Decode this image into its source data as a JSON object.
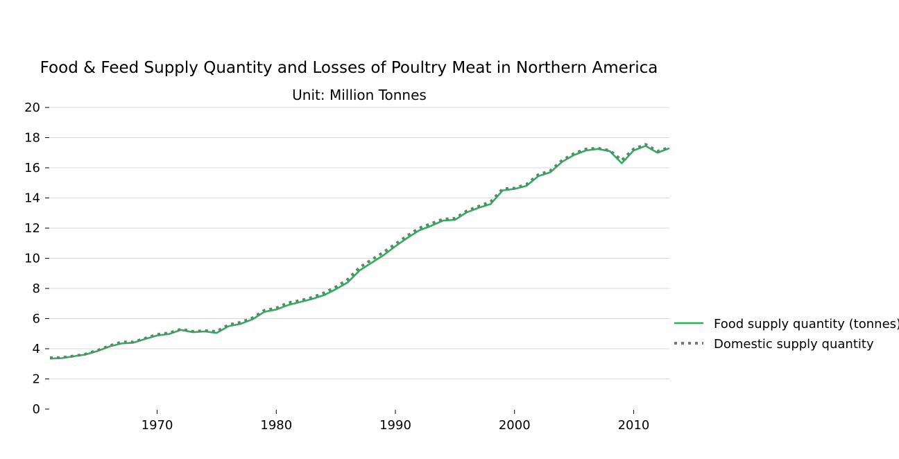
{
  "chart_data": {
    "type": "line",
    "title": "Food & Feed Supply Quantity and Losses of Poultry Meat in Northern America",
    "subtitle": "Unit: Million Tonnes",
    "xlabel": "",
    "ylabel": "",
    "xlim": [
      1961,
      2013
    ],
    "ylim": [
      0,
      20
    ],
    "yticks": [
      "0",
      "2",
      "4",
      "6",
      "8",
      "10",
      "12",
      "14",
      "16",
      "18",
      "20"
    ],
    "xticks": [
      "1970",
      "1980",
      "1990",
      "2000",
      "2010"
    ],
    "grid": "horizontal",
    "legend_position": "right",
    "x": [
      1961,
      1962,
      1963,
      1964,
      1965,
      1966,
      1967,
      1968,
      1969,
      1970,
      1971,
      1972,
      1973,
      1974,
      1975,
      1976,
      1977,
      1978,
      1979,
      1980,
      1981,
      1982,
      1983,
      1984,
      1985,
      1986,
      1987,
      1988,
      1989,
      1990,
      1991,
      1992,
      1993,
      1994,
      1995,
      1996,
      1997,
      1998,
      1999,
      2000,
      2001,
      2002,
      2003,
      2004,
      2005,
      2006,
      2007,
      2008,
      2009,
      2010,
      2011,
      2012,
      2013
    ],
    "series": [
      {
        "name": "Food supply quantity (tonnes)",
        "color": "#1db954",
        "style": "solid",
        "values": [
          3.35,
          3.38,
          3.5,
          3.62,
          3.85,
          4.15,
          4.35,
          4.4,
          4.65,
          4.88,
          4.98,
          5.25,
          5.1,
          5.15,
          5.05,
          5.5,
          5.65,
          5.95,
          6.45,
          6.6,
          6.9,
          7.1,
          7.3,
          7.55,
          7.95,
          8.4,
          9.2,
          9.7,
          10.2,
          10.8,
          11.35,
          11.85,
          12.15,
          12.5,
          12.55,
          13.05,
          13.35,
          13.6,
          14.5,
          14.6,
          14.8,
          15.45,
          15.7,
          16.4,
          16.85,
          17.15,
          17.25,
          17.1,
          16.3,
          17.15,
          17.45,
          17.0,
          17.3
        ]
      },
      {
        "name": "Domestic supply quantity",
        "color": "#777777",
        "style": "dotted",
        "values": [
          3.4,
          3.42,
          3.52,
          3.65,
          3.9,
          4.2,
          4.45,
          4.45,
          4.7,
          4.95,
          5.05,
          5.3,
          5.15,
          5.2,
          5.15,
          5.6,
          5.75,
          6.05,
          6.55,
          6.7,
          7.05,
          7.2,
          7.4,
          7.7,
          8.1,
          8.6,
          9.4,
          9.9,
          10.4,
          10.95,
          11.5,
          12.0,
          12.3,
          12.6,
          12.65,
          13.15,
          13.45,
          13.75,
          14.6,
          14.65,
          14.9,
          15.55,
          15.8,
          16.5,
          16.95,
          17.25,
          17.3,
          17.15,
          16.5,
          17.25,
          17.55,
          17.1,
          17.35
        ]
      }
    ]
  }
}
